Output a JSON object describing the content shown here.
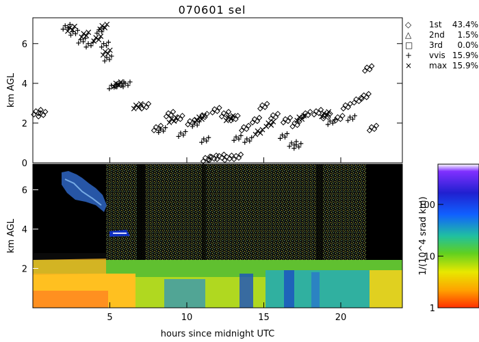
{
  "chart_data": [
    {
      "type": "scatter",
      "title": "070601 sel",
      "xlabel": "",
      "ylabel": "km AGL",
      "xlim": [
        0,
        24
      ],
      "ylim": [
        0,
        7.3
      ],
      "x_ticks": [
        5,
        10,
        15,
        20
      ],
      "y_ticks": [
        0,
        2,
        4,
        6
      ],
      "legend_placement": "right",
      "legend": [
        {
          "symbol": "diamond",
          "glyph": "◇",
          "label": "1st",
          "value": "43.4%"
        },
        {
          "symbol": "triangle",
          "glyph": "△",
          "label": "2nd",
          "value": "1.5%"
        },
        {
          "symbol": "square",
          "glyph": "□",
          "label": "3rd",
          "value": "0.0%"
        },
        {
          "symbol": "plus",
          "glyph": "+",
          "label": "vvis",
          "value": "15.9%"
        },
        {
          "symbol": "cross",
          "glyph": "×",
          "label": "max",
          "value": "15.9%"
        }
      ],
      "series": [
        {
          "symbol": "diamond",
          "points": [
            [
              0.2,
              2.6
            ],
            [
              0.5,
              2.5
            ],
            [
              7.2,
              2.9
            ],
            [
              8.0,
              1.8
            ],
            [
              8.8,
              2.5
            ],
            [
              9.4,
              2.3
            ],
            [
              10.2,
              2.1
            ],
            [
              11.0,
              2.4
            ],
            [
              11.8,
              2.7
            ],
            [
              12.4,
              2.5
            ],
            [
              13.0,
              2.3
            ],
            [
              13.7,
              1.8
            ],
            [
              14.4,
              2.2
            ],
            [
              14.9,
              2.9
            ],
            [
              15.6,
              2.4
            ],
            [
              16.4,
              2.2
            ],
            [
              17.0,
              2.0
            ],
            [
              17.7,
              2.5
            ],
            [
              18.4,
              2.6
            ],
            [
              19.0,
              2.4
            ],
            [
              19.8,
              2.3
            ],
            [
              20.3,
              2.9
            ],
            [
              21.0,
              3.2
            ],
            [
              21.5,
              3.4
            ],
            [
              21.7,
              4.8
            ],
            [
              22.0,
              1.8
            ],
            [
              11.2,
              0.25
            ],
            [
              11.6,
              0.3
            ],
            [
              12.1,
              0.35
            ],
            [
              12.6,
              0.3
            ],
            [
              13.2,
              0.35
            ]
          ]
        },
        {
          "symbol": "plus",
          "points": [
            [
              2.1,
              6.9
            ],
            [
              2.6,
              6.6
            ],
            [
              3.1,
              6.2
            ],
            [
              3.6,
              6.0
            ],
            [
              4.3,
              6.7
            ],
            [
              4.6,
              6.0
            ],
            [
              4.8,
              5.3
            ],
            [
              5.1,
              3.9
            ],
            [
              5.6,
              4.0
            ],
            [
              6.0,
              4.0
            ],
            [
              8.3,
              1.7
            ],
            [
              10.5,
              2.0
            ],
            [
              11.1,
              1.2
            ],
            [
              13.2,
              1.3
            ],
            [
              13.9,
              1.2
            ],
            [
              16.2,
              1.4
            ],
            [
              16.8,
              1.0
            ],
            [
              17.1,
              0.9
            ],
            [
              19.3,
              2.1
            ],
            [
              20.6,
              2.3
            ],
            [
              9.6,
              1.5
            ]
          ]
        },
        {
          "symbol": "cross",
          "points": [
            [
              2.4,
              6.8
            ],
            [
              3.3,
              6.5
            ],
            [
              4.1,
              6.3
            ],
            [
              4.5,
              6.9
            ],
            [
              4.7,
              5.6
            ],
            [
              5.4,
              4.0
            ],
            [
              6.7,
              2.9
            ],
            [
              9.0,
              2.2
            ],
            [
              10.8,
              2.3
            ],
            [
              12.7,
              2.3
            ],
            [
              14.6,
              1.6
            ],
            [
              15.3,
              2.0
            ],
            [
              17.3,
              2.3
            ],
            [
              18.9,
              2.5
            ]
          ]
        }
      ]
    },
    {
      "type": "heatmap",
      "xlabel": "hours since midnight UTC",
      "ylabel": "km AGL",
      "xlim": [
        0,
        24
      ],
      "ylim": [
        0,
        7.3
      ],
      "x_ticks": [
        5,
        10,
        15,
        20
      ],
      "y_ticks": [
        2,
        4,
        6
      ],
      "colorbar": {
        "label": "1/(10^4 srad km)",
        "scale": "log",
        "range": [
          1,
          600
        ],
        "ticks": [
          1,
          10,
          100
        ],
        "colors": [
          "#ff3000",
          "#ffa000",
          "#e8e800",
          "#60d020",
          "#20c0a0",
          "#1060ff",
          "#2020d0",
          "#8030ff",
          "#ffffff"
        ]
      }
    }
  ]
}
